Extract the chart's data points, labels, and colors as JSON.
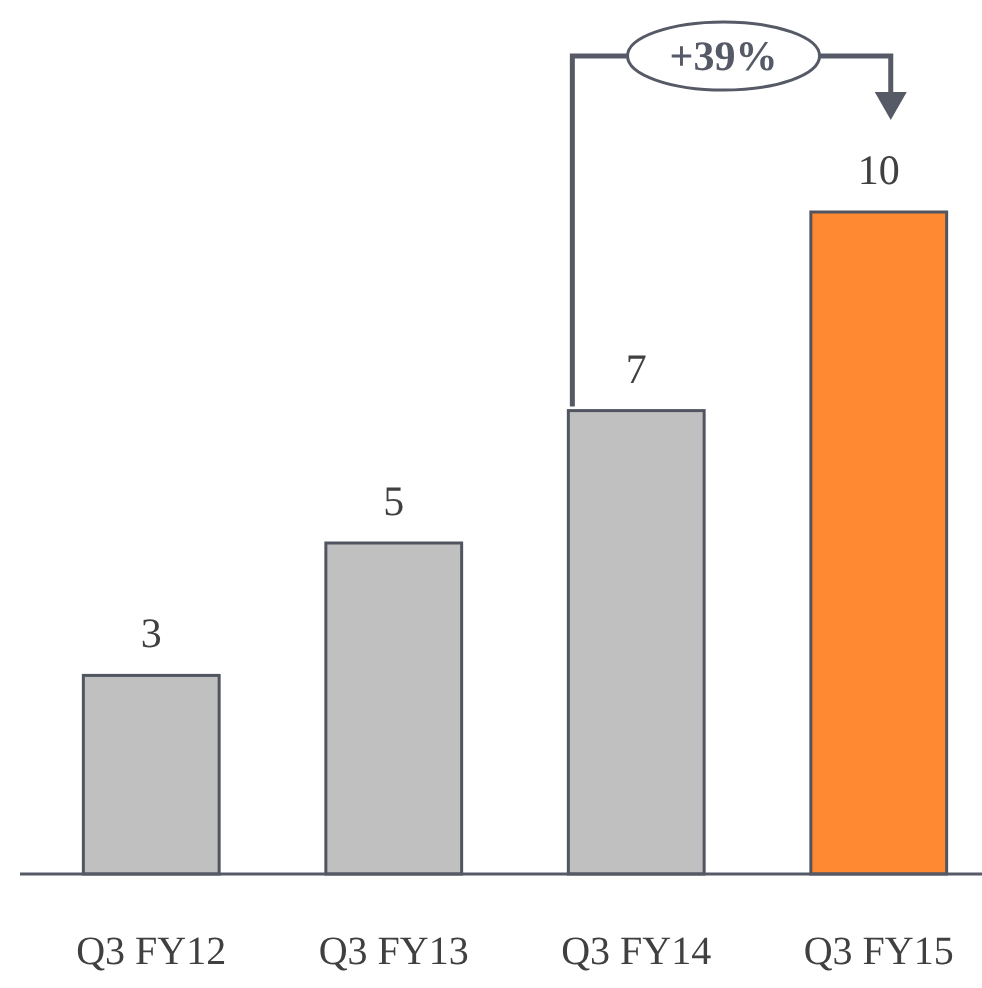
{
  "chart_data": {
    "type": "bar",
    "categories": [
      "Q3 FY12",
      "Q3 FY13",
      "Q3 FY14",
      "Q3 FY15"
    ],
    "values": [
      3,
      5,
      7,
      10
    ],
    "colors": [
      "#c0c0c0",
      "#c0c0c0",
      "#c0c0c0",
      "#ff8833"
    ],
    "data_labels": true,
    "annotations": [
      "+39%"
    ]
  }
}
